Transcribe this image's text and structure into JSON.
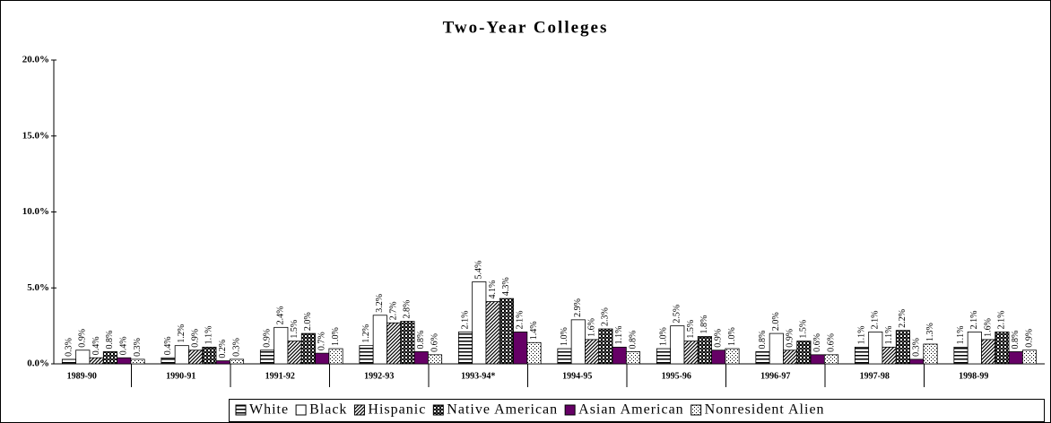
{
  "chart_data": {
    "type": "bar",
    "title": "Two-Year Colleges",
    "categories": [
      "1989-90",
      "1990-91",
      "1991-92",
      "1992-93",
      "1993-94*",
      "1994-95",
      "1995-96",
      "1996-97",
      "1997-98",
      "1998-99"
    ],
    "series": [
      {
        "name": "White",
        "color": "#000000",
        "pattern": "horizontal",
        "values": [
          0.3,
          0.4,
          0.9,
          1.2,
          2.1,
          1.0,
          1.0,
          0.8,
          1.1,
          1.1
        ],
        "value_labels": [
          "0.3%",
          "0.4%",
          "0.9%",
          "1.2%",
          "2.1%",
          "1.0%",
          "1.0%",
          "0.8%",
          "1.1%",
          "1.1%"
        ]
      },
      {
        "name": "Black",
        "color": "#000000",
        "pattern": "solid-white",
        "values": [
          0.9,
          1.2,
          2.4,
          3.2,
          5.4,
          2.9,
          2.5,
          2.0,
          2.1,
          2.1
        ],
        "value_labels": [
          "0.9%",
          "1.2%",
          "2.4%",
          "3.2%",
          "5.4%",
          "2.9%",
          "2.5%",
          "2.0%",
          "2.1%",
          "2.1%"
        ]
      },
      {
        "name": "Hispanic",
        "color": "#000000",
        "pattern": "diagonal",
        "values": [
          0.4,
          0.9,
          1.5,
          2.7,
          4.1,
          1.6,
          1.5,
          0.9,
          1.1,
          1.6
        ],
        "value_labels": [
          "0.4%",
          "0.9%",
          "1.5%",
          "2.7%",
          "4.1%",
          "1.6%",
          "1.5%",
          "0.9%",
          "1.1%",
          "1.6%"
        ]
      },
      {
        "name": "Native American",
        "color": "#000000",
        "pattern": "checker",
        "values": [
          0.8,
          1.1,
          2.0,
          2.8,
          4.3,
          2.3,
          1.8,
          1.5,
          2.2,
          2.1
        ],
        "value_labels": [
          "0.8%",
          "1.1%",
          "2.0%",
          "2.8%",
          "4.3%",
          "2.3%",
          "1.8%",
          "1.5%",
          "2.2%",
          "2.1%"
        ]
      },
      {
        "name": "Asian American",
        "color": "#660066",
        "pattern": "solid",
        "values": [
          0.4,
          0.2,
          0.7,
          0.8,
          2.1,
          1.1,
          0.9,
          0.6,
          0.3,
          0.8
        ],
        "value_labels": [
          "0.4%",
          "0.2%",
          "0.7%",
          "0.8%",
          "2.1%",
          "1.1%",
          "0.9%",
          "0.6%",
          "0.3%",
          "0.8%"
        ]
      },
      {
        "name": "Nonresident Alien",
        "color": "#000000",
        "pattern": "dots",
        "values": [
          0.3,
          0.3,
          1.0,
          0.6,
          1.4,
          0.8,
          1.0,
          0.6,
          1.3,
          0.9
        ],
        "value_labels": [
          "0.3%",
          "0.3%",
          "1.0%",
          "0.6%",
          "1.4%",
          "0.8%",
          "1.0%",
          "0.6%",
          "1.3%",
          "0.9%"
        ]
      }
    ],
    "ylim": [
      0,
      20
    ],
    "yticks": [
      {
        "value": 0,
        "label": "0.0%"
      },
      {
        "value": 5,
        "label": "5.0%"
      },
      {
        "value": 10,
        "label": "10.0%"
      },
      {
        "value": 15,
        "label": "15.0%"
      },
      {
        "value": 20,
        "label": "20.0%"
      }
    ],
    "legend": "bottom-right"
  }
}
